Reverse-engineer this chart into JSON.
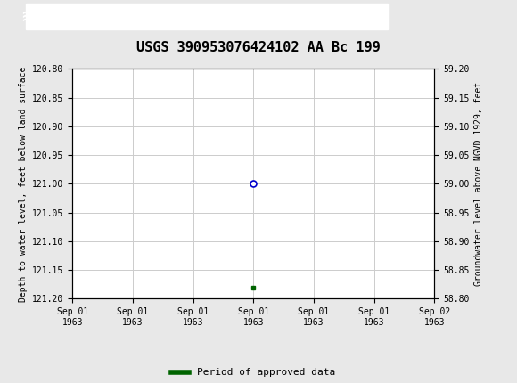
{
  "title": "USGS 390953076424102 AA Bc 199",
  "ylabel_left": "Depth to water level, feet below land surface",
  "ylabel_right": "Groundwater level above NGVD 1929, feet",
  "ylim_left": [
    120.8,
    121.2
  ],
  "ylim_right": [
    58.8,
    59.2
  ],
  "yticks_left": [
    120.8,
    120.85,
    120.9,
    120.95,
    121.0,
    121.05,
    121.1,
    121.15,
    121.2
  ],
  "yticks_right": [
    58.8,
    58.85,
    58.9,
    58.95,
    59.0,
    59.05,
    59.1,
    59.15,
    59.2
  ],
  "xlim": [
    0,
    6
  ],
  "xtick_labels": [
    "Sep 01\n1963",
    "Sep 01\n1963",
    "Sep 01\n1963",
    "Sep 01\n1963",
    "Sep 01\n1963",
    "Sep 01\n1963",
    "Sep 02\n1963"
  ],
  "xtick_positions": [
    0,
    1,
    2,
    3,
    4,
    5,
    6
  ],
  "data_point_x": 3,
  "data_point_y": 121.0,
  "data_point_color": "#0000cc",
  "approved_point_x": 3,
  "approved_point_y": 121.18,
  "approved_point_color": "#006400",
  "legend_label": "Period of approved data",
  "legend_color": "#006400",
  "header_bg_color": "#006400",
  "header_text_color": "#ffffff",
  "background_color": "#e8e8e8",
  "plot_bg_color": "#ffffff",
  "grid_color": "#cccccc",
  "title_fontsize": 11,
  "tick_fontsize": 7,
  "ylabel_fontsize": 7,
  "legend_fontsize": 8
}
